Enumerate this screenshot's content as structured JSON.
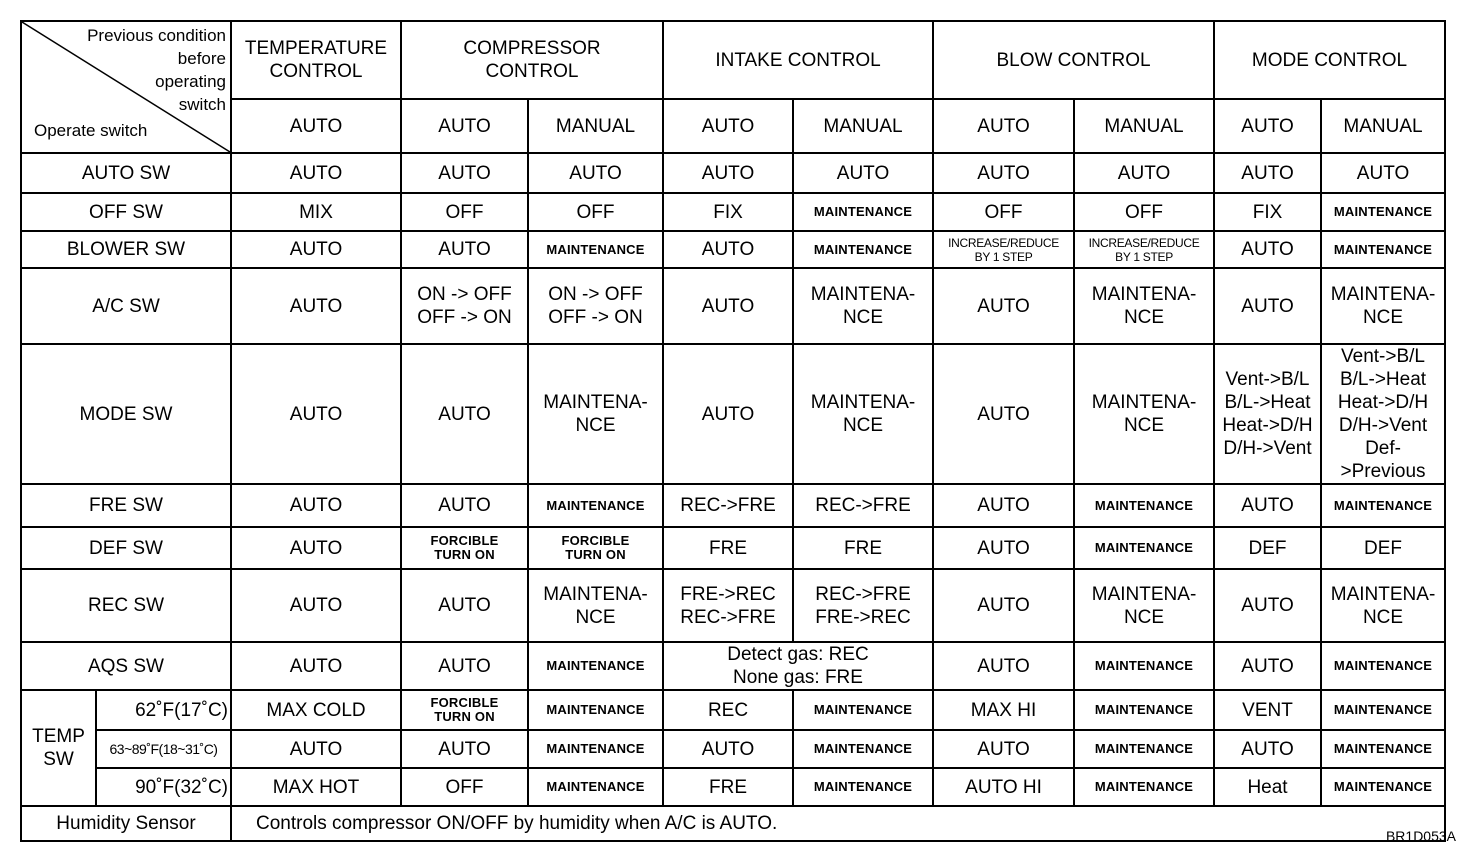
{
  "corner": {
    "previous": "Previous condition\nbefore\noperating\nswitch",
    "operate": "Operate switch"
  },
  "groups": [
    "TEMPERATURE\nCONTROL",
    "COMPRESSOR\nCONTROL",
    "INTAKE CONTROL",
    "BLOW CONTROL",
    "MODE CONTROL"
  ],
  "subheaders": [
    "AUTO",
    "AUTO",
    "MANUAL",
    "AUTO",
    "MANUAL",
    "AUTO",
    "MANUAL",
    "AUTO",
    "MANUAL"
  ],
  "rows": [
    {
      "label": "AUTO SW",
      "cells": [
        "AUTO",
        "AUTO",
        "AUTO",
        "AUTO",
        "AUTO",
        "AUTO",
        "AUTO",
        "AUTO",
        "AUTO"
      ]
    },
    {
      "label": "OFF SW",
      "cells": [
        "MIX",
        "OFF",
        "OFF",
        "FIX",
        "MAINTENANCE",
        "OFF",
        "OFF",
        "FIX",
        "MAINTENANCE"
      ]
    },
    {
      "label": "BLOWER SW",
      "cells": [
        "AUTO",
        "AUTO",
        "MAINTENANCE",
        "AUTO",
        "MAINTENANCE",
        "INCREASE/REDUCE\nBY 1 STEP",
        "INCREASE/REDUCE\nBY 1 STEP",
        "AUTO",
        "MAINTENANCE"
      ]
    },
    {
      "label": "A/C SW",
      "cells": [
        "AUTO",
        "ON -> OFF\nOFF -> ON",
        "ON -> OFF\nOFF -> ON",
        "AUTO",
        "MAINTENA-\nNCE",
        "AUTO",
        "MAINTENA-\nNCE",
        "AUTO",
        "MAINTENA-\nNCE"
      ]
    },
    {
      "label": "MODE  SW",
      "cells": [
        "AUTO",
        "AUTO",
        "MAINTENA-\nNCE",
        "AUTO",
        "MAINTENA-\nNCE",
        "AUTO",
        "MAINTENA-\nNCE",
        "Vent->B/L\nB/L->Heat\nHeat->D/H\nD/H->Vent",
        "Vent->B/L\nB/L->Heat\nHeat->D/H\nD/H->Vent\nDef->Previous"
      ]
    },
    {
      "label": "FRE  SW",
      "cells": [
        "AUTO",
        "AUTO",
        "MAINTENANCE",
        "REC->FRE",
        "REC->FRE",
        "AUTO",
        "MAINTENANCE",
        "AUTO",
        "MAINTENANCE"
      ]
    },
    {
      "label": "DEF SW",
      "cells": [
        "AUTO",
        "FORCIBLE\nTURN ON",
        "FORCIBLE\nTURN ON",
        "FRE",
        "FRE",
        "AUTO",
        "MAINTENANCE",
        "DEF",
        "DEF"
      ]
    },
    {
      "label": "REC SW",
      "cells": [
        "AUTO",
        "AUTO",
        "MAINTENA-\nNCE",
        "FRE->REC\nREC->FRE",
        "REC->FRE\nFRE->REC",
        "AUTO",
        "MAINTENA-\nNCE",
        "AUTO",
        "MAINTENA-\nNCE"
      ]
    },
    {
      "label": "AQS  SW",
      "cells": [
        "AUTO",
        "AUTO",
        "MAINTENANCE",
        {
          "text": "Detect gas: REC\nNone gas: FRE",
          "colspan": 2
        },
        "AUTO",
        "MAINTENANCE",
        "AUTO",
        "MAINTENANCE"
      ]
    }
  ],
  "temp": {
    "label": "TEMP\nSW",
    "rows": [
      {
        "label": "62˚F(17˚C)",
        "cells": [
          "MAX COLD",
          "FORCIBLE\nTURN ON",
          "MAINTENANCE",
          "REC",
          "MAINTENANCE",
          "MAX HI",
          "MAINTENANCE",
          "VENT",
          "MAINTENANCE"
        ]
      },
      {
        "label": "63~89˚F(18~31˚C)",
        "cells": [
          "AUTO",
          "AUTO",
          "MAINTENANCE",
          "AUTO",
          "MAINTENANCE",
          "AUTO",
          "MAINTENANCE",
          "AUTO",
          "MAINTENANCE"
        ]
      },
      {
        "label": "90˚F(32˚C)",
        "cells": [
          "MAX HOT",
          "OFF",
          "MAINTENANCE",
          "FRE",
          "MAINTENANCE",
          "AUTO HI",
          "MAINTENANCE",
          "Heat",
          "MAINTENANCE"
        ]
      }
    ]
  },
  "humidity": {
    "label": "Humidity Sensor",
    "text": "Controls compressor ON/OFF by humidity when A/C is AUTO."
  },
  "figure_code": "BR1D053A"
}
